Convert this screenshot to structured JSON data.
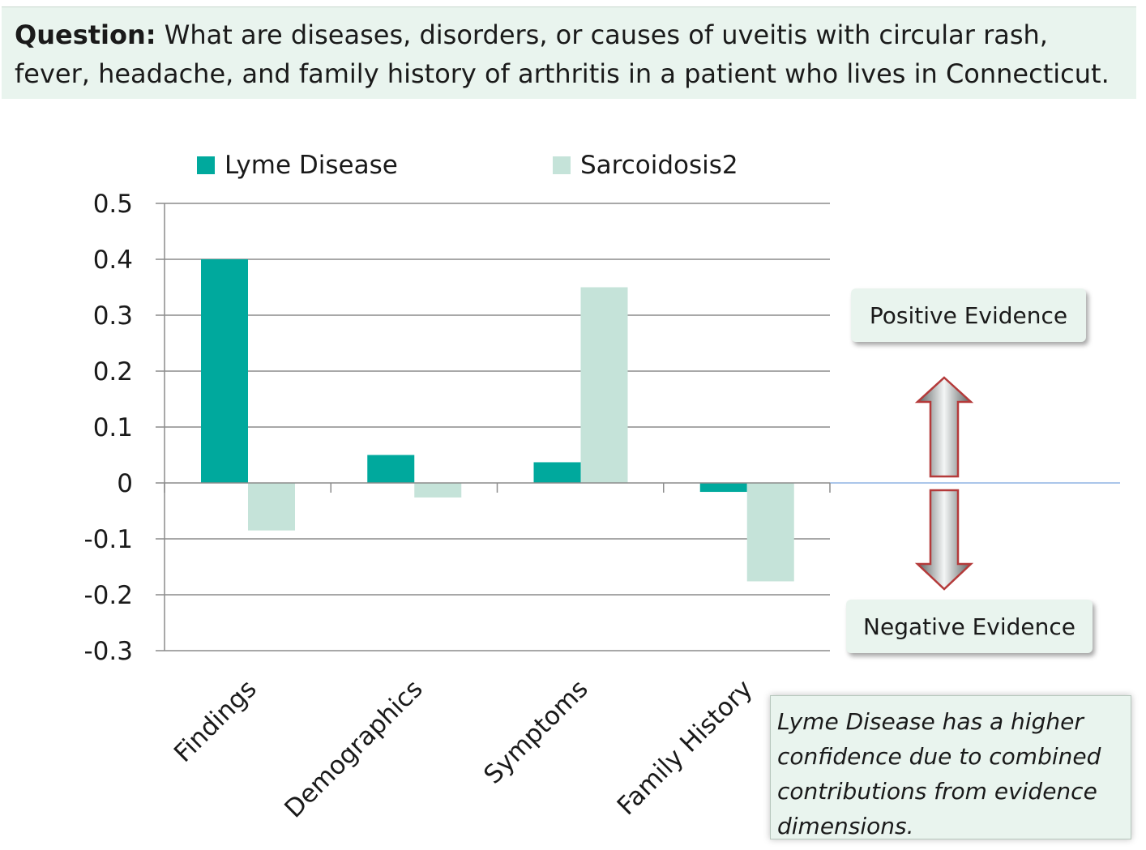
{
  "question": {
    "label": "Question:",
    "text": " What are diseases, disorders, or causes of uveitis with circular rash, fever, headache, and family history of arthritis in a patient who lives in Connecticut."
  },
  "callouts": {
    "positive": "Positive Evidence",
    "negative": "Negative Evidence"
  },
  "note": "Lyme Disease has a higher confidence due to combined contributions from evidence dimensions.",
  "colors": {
    "lyme": "#00a99d",
    "sarcoidosis": "#c5e3d9",
    "gridline": "#8c8c8c",
    "zero_extension": "#8fb4e3",
    "callout_bg": "#e9f4ee"
  },
  "icons": {
    "up_arrow": "up-arrow-icon",
    "down_arrow": "down-arrow-icon"
  },
  "chart_data": {
    "type": "bar",
    "categories": [
      "Findings",
      "Demographics",
      "Symptoms",
      "Family History"
    ],
    "series": [
      {
        "name": "Lyme Disease",
        "values": [
          0.4,
          0.05,
          0.037,
          -0.016
        ]
      },
      {
        "name": "Sarcoidosis2",
        "values": [
          -0.085,
          -0.026,
          0.35,
          -0.176
        ]
      }
    ],
    "ylim": [
      -0.3,
      0.5
    ],
    "yticks": [
      "0.5",
      "0.4",
      "0.3",
      "0.2",
      "0.1",
      "0",
      "-0.1",
      "-0.2",
      "-0.3"
    ],
    "grid": true,
    "legend": "top"
  }
}
